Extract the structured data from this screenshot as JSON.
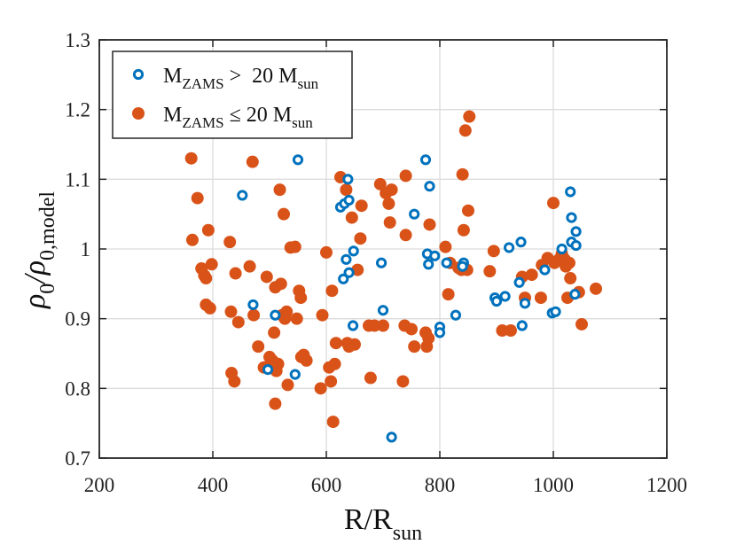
{
  "chart_data": {
    "type": "scatter",
    "title": "",
    "xlabel": {
      "main": "R/R",
      "sub": "sun"
    },
    "ylabel": {
      "main": "ρ",
      "sub1": "0",
      "slash": "/ρ",
      "sub2": "0,model"
    },
    "xlim": [
      200,
      1200
    ],
    "ylim": [
      0.7,
      1.3
    ],
    "xticks": [
      200,
      400,
      600,
      800,
      1000,
      1200
    ],
    "yticks": [
      0.7,
      0.8,
      0.9,
      1.0,
      1.1,
      1.2,
      1.3
    ],
    "xtick_labels": [
      "200",
      "400",
      "600",
      "800",
      "1000",
      "1200"
    ],
    "ytick_labels": [
      "0.7",
      "0.8",
      "0.9",
      "1",
      "1.1",
      "1.2",
      "1.3"
    ],
    "grid": true,
    "legend_position": "top-left",
    "series": [
      {
        "name": "M_ZAMS > 20 M_sun",
        "legend": {
          "m": "M",
          "msub": "ZAMS",
          "op": " >  20 M",
          "sub": "sun"
        },
        "marker": "open-circle",
        "color": "#0072BD",
        "points": [
          [
            452,
            1.077
          ],
          [
            471,
            0.92
          ],
          [
            510,
            0.905
          ],
          [
            497,
            0.827
          ],
          [
            545,
            0.82
          ],
          [
            550,
            1.128
          ],
          [
            625,
            1.06
          ],
          [
            632,
            1.065
          ],
          [
            638,
            1.1
          ],
          [
            640,
            1.07
          ],
          [
            635,
            0.985
          ],
          [
            640,
            0.966
          ],
          [
            648,
            0.997
          ],
          [
            630,
            0.957
          ],
          [
            647,
            0.89
          ],
          [
            697,
            0.98
          ],
          [
            700,
            0.912
          ],
          [
            715,
            0.73
          ],
          [
            755,
            1.05
          ],
          [
            775,
            1.128
          ],
          [
            778,
            0.993
          ],
          [
            780,
            0.978
          ],
          [
            782,
            1.09
          ],
          [
            791,
            0.99
          ],
          [
            800,
            0.888
          ],
          [
            800,
            0.88
          ],
          [
            812,
            0.98
          ],
          [
            828,
            0.905
          ],
          [
            842,
            0.98
          ],
          [
            840,
            0.975
          ],
          [
            897,
            0.93
          ],
          [
            900,
            0.925
          ],
          [
            915,
            0.932
          ],
          [
            922,
            1.002
          ],
          [
            940,
            0.952
          ],
          [
            943,
            1.01
          ],
          [
            945,
            0.89
          ],
          [
            950,
            0.922
          ],
          [
            985,
            0.97
          ],
          [
            998,
            0.908
          ],
          [
            1004,
            0.91
          ],
          [
            1015,
            1.0
          ],
          [
            1030,
            1.082
          ],
          [
            1032,
            1.045
          ],
          [
            1032,
            1.01
          ],
          [
            1040,
            1.025
          ],
          [
            1040,
            1.005
          ],
          [
            1038,
            0.935
          ]
        ]
      },
      {
        "name": "M_ZAMS ≤ 20 M_sun",
        "legend": {
          "m": "M",
          "msub": "ZAMS",
          "op": " ≤ 20 M",
          "sub": "sun"
        },
        "marker": "filled-circle",
        "color": "#D95319",
        "points": [
          [
            362,
            1.13
          ],
          [
            364,
            1.013
          ],
          [
            373,
            1.073
          ],
          [
            380,
            0.972
          ],
          [
            385,
            0.962
          ],
          [
            388,
            0.958
          ],
          [
            388,
            0.92
          ],
          [
            392,
            1.027
          ],
          [
            395,
            0.915
          ],
          [
            398,
            0.978
          ],
          [
            430,
            1.01
          ],
          [
            432,
            0.91
          ],
          [
            433,
            0.822
          ],
          [
            438,
            0.81
          ],
          [
            440,
            0.965
          ],
          [
            445,
            0.895
          ],
          [
            465,
            0.975
          ],
          [
            470,
            1.125
          ],
          [
            472,
            0.905
          ],
          [
            480,
            0.86
          ],
          [
            490,
            0.83
          ],
          [
            495,
            0.96
          ],
          [
            500,
            0.845
          ],
          [
            505,
            0.84
          ],
          [
            508,
            0.88
          ],
          [
            510,
            0.945
          ],
          [
            510,
            0.778
          ],
          [
            512,
            0.825
          ],
          [
            515,
            0.835
          ],
          [
            518,
            1.085
          ],
          [
            520,
            0.95
          ],
          [
            522,
            0.905
          ],
          [
            525,
            1.05
          ],
          [
            527,
            0.9
          ],
          [
            530,
            0.91
          ],
          [
            532,
            0.805
          ],
          [
            537,
            1.002
          ],
          [
            545,
            1.003
          ],
          [
            548,
            0.9
          ],
          [
            552,
            0.94
          ],
          [
            555,
            0.93
          ],
          [
            556,
            0.845
          ],
          [
            560,
            0.848
          ],
          [
            565,
            0.84
          ],
          [
            590,
            0.8
          ],
          [
            593,
            0.905
          ],
          [
            600,
            0.995
          ],
          [
            605,
            0.83
          ],
          [
            608,
            0.81
          ],
          [
            610,
            0.94
          ],
          [
            612,
            0.752
          ],
          [
            615,
            0.835
          ],
          [
            617,
            0.865
          ],
          [
            625,
            1.103
          ],
          [
            635,
            1.085
          ],
          [
            637,
            0.865
          ],
          [
            640,
            0.86
          ],
          [
            645,
            1.045
          ],
          [
            650,
            0.863
          ],
          [
            655,
            0.97
          ],
          [
            660,
            1.015
          ],
          [
            662,
            1.062
          ],
          [
            675,
            0.89
          ],
          [
            678,
            0.815
          ],
          [
            685,
            0.89
          ],
          [
            695,
            1.093
          ],
          [
            700,
            0.89
          ],
          [
            705,
            1.08
          ],
          [
            710,
            1.065
          ],
          [
            712,
            1.038
          ],
          [
            715,
            1.085
          ],
          [
            735,
            0.81
          ],
          [
            738,
            0.89
          ],
          [
            740,
            1.105
          ],
          [
            740,
            1.02
          ],
          [
            750,
            0.885
          ],
          [
            755,
            0.86
          ],
          [
            775,
            0.88
          ],
          [
            777,
            0.86
          ],
          [
            780,
            0.872
          ],
          [
            782,
            1.035
          ],
          [
            810,
            1.003
          ],
          [
            815,
            0.935
          ],
          [
            818,
            0.98
          ],
          [
            833,
            0.973
          ],
          [
            838,
            0.97
          ],
          [
            840,
            1.107
          ],
          [
            842,
            1.027
          ],
          [
            845,
            1.17
          ],
          [
            848,
            0.97
          ],
          [
            850,
            1.055
          ],
          [
            852,
            1.19
          ],
          [
            888,
            0.968
          ],
          [
            895,
            0.997
          ],
          [
            910,
            0.883
          ],
          [
            925,
            0.883
          ],
          [
            945,
            0.96
          ],
          [
            950,
            0.93
          ],
          [
            962,
            0.963
          ],
          [
            978,
            0.93
          ],
          [
            980,
            0.977
          ],
          [
            990,
            0.987
          ],
          [
            1000,
            1.066
          ],
          [
            1002,
            0.98
          ],
          [
            1010,
            0.985
          ],
          [
            1015,
            0.993
          ],
          [
            1020,
            0.985
          ],
          [
            1022,
            0.975
          ],
          [
            1025,
            0.93
          ],
          [
            1028,
            0.98
          ],
          [
            1030,
            0.958
          ],
          [
            1045,
            0.938
          ],
          [
            1050,
            0.892
          ],
          [
            1075,
            0.943
          ]
        ]
      }
    ]
  }
}
